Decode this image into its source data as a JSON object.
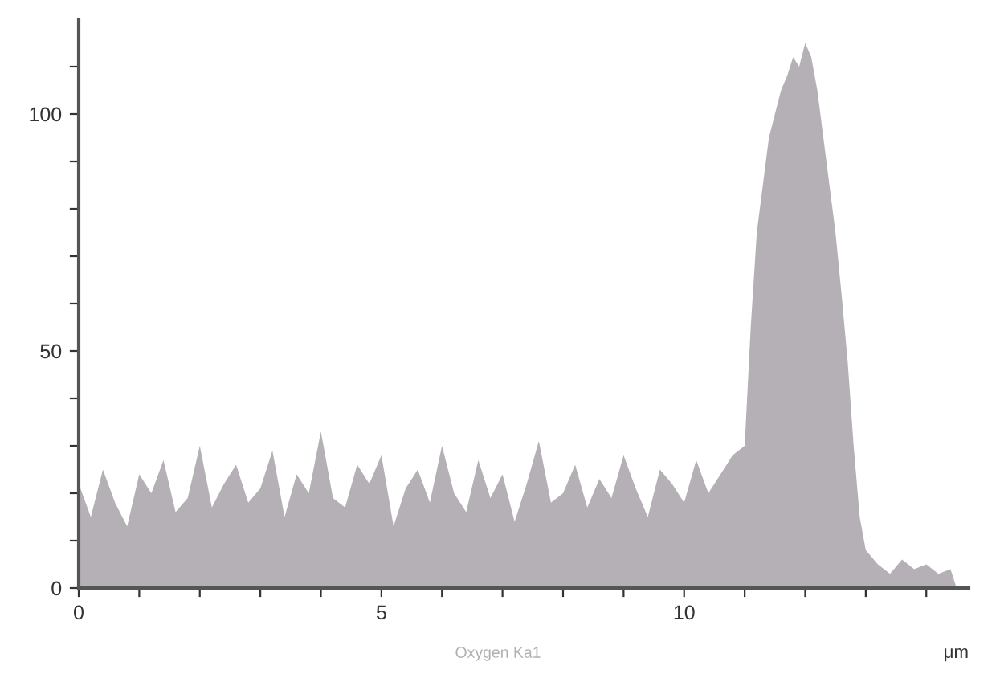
{
  "chart_data": {
    "type": "area",
    "xlabel": "μm",
    "annotations": [
      "Oxygen Ka1"
    ],
    "x": [
      0,
      0.2,
      0.4,
      0.6,
      0.8,
      1.0,
      1.2,
      1.4,
      1.6,
      1.8,
      2.0,
      2.2,
      2.4,
      2.6,
      2.8,
      3.0,
      3.2,
      3.4,
      3.6,
      3.8,
      4.0,
      4.2,
      4.4,
      4.6,
      4.8,
      5.0,
      5.2,
      5.4,
      5.6,
      5.8,
      6.0,
      6.2,
      6.4,
      6.6,
      6.8,
      7.0,
      7.2,
      7.4,
      7.6,
      7.8,
      8.0,
      8.2,
      8.4,
      8.6,
      8.8,
      9.0,
      9.2,
      9.4,
      9.6,
      9.8,
      10.0,
      10.2,
      10.4,
      10.6,
      10.8,
      11.0,
      11.1,
      11.2,
      11.3,
      11.4,
      11.5,
      11.6,
      11.7,
      11.8,
      11.9,
      12.0,
      12.1,
      12.2,
      12.3,
      12.4,
      12.5,
      12.6,
      12.7,
      12.8,
      12.9,
      13.0,
      13.2,
      13.4,
      13.6,
      13.8,
      14.0,
      14.2,
      14.4,
      14.5
    ],
    "series": [
      {
        "color": "#b4b0b6",
        "values": [
          22,
          15,
          25,
          18,
          13,
          24,
          20,
          27,
          16,
          19,
          30,
          17,
          22,
          26,
          18,
          21,
          29,
          15,
          24,
          20,
          33,
          19,
          17,
          26,
          22,
          28,
          13,
          21,
          25,
          18,
          30,
          20,
          16,
          27,
          19,
          24,
          14,
          22,
          31,
          18,
          20,
          26,
          17,
          23,
          19,
          28,
          21,
          15,
          25,
          22,
          18,
          27,
          20,
          24,
          28,
          30,
          55,
          75,
          85,
          95,
          100,
          105,
          108,
          112,
          110,
          115,
          112,
          105,
          95,
          85,
          75,
          62,
          48,
          30,
          15,
          8,
          5,
          3,
          6,
          4,
          5,
          3,
          4,
          0
        ]
      }
    ],
    "xlim": [
      0,
      14.7
    ],
    "ylim": [
      0,
      120
    ],
    "xticks": [
      0,
      {
        "value": 1,
        "label": null
      },
      {
        "value": 2,
        "label": null
      },
      {
        "value": 3,
        "label": null
      },
      {
        "value": 4,
        "label": null
      },
      5,
      {
        "value": 6,
        "label": null
      },
      {
        "value": 7,
        "label": null
      },
      {
        "value": 8,
        "label": null
      },
      {
        "value": 9,
        "label": null
      },
      10,
      {
        "value": 11,
        "label": null
      },
      {
        "value": 12,
        "label": null
      },
      {
        "value": 13,
        "label": null
      },
      {
        "value": 14,
        "label": null
      }
    ],
    "yticks": [
      0,
      {
        "value": 10,
        "label": null
      },
      {
        "value": 20,
        "label": null
      },
      {
        "value": 30,
        "label": null
      },
      {
        "value": 40,
        "label": null
      },
      50,
      {
        "value": 60,
        "label": null
      },
      {
        "value": 70,
        "label": null
      },
      {
        "value": 80,
        "label": null
      },
      {
        "value": 90,
        "label": null
      },
      100,
      {
        "value": 110,
        "label": null
      }
    ],
    "grid": false
  }
}
